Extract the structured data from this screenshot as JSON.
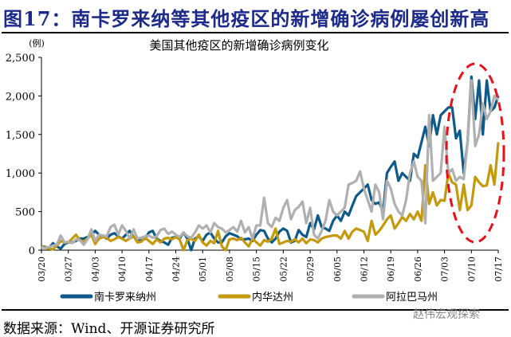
{
  "header": {
    "title": "图17：南卡罗来纳等其他疫区的新增确诊病例屡创新高"
  },
  "footer": {
    "source": "数据来源：Wind、开源证券研究所",
    "watermark": "赵伟宏观探索"
  },
  "chart_data": {
    "type": "line",
    "title": "美国其他疫区的新增确诊病例变化",
    "ylabel": "(例)",
    "ylim": [
      0,
      2500
    ],
    "yticks": [
      "0",
      "500",
      "1,000",
      "1,500",
      "2,000",
      "2,500"
    ],
    "start_date": "03/20",
    "xticks": [
      "03/20",
      "03/27",
      "04/03",
      "04/10",
      "04/17",
      "04/24",
      "05/01",
      "05/08",
      "05/15",
      "05/22",
      "05/29",
      "06/05",
      "06/12",
      "06/19",
      "06/26",
      "07/03",
      "07/10",
      "07/17"
    ],
    "legend_position": "bottom",
    "annotation": "red dashed ellipse around 07/03–07/17 values",
    "series": [
      {
        "name": "南卡罗来纳州",
        "color": "#0e5a8a",
        "values": [
          50,
          40,
          30,
          90,
          50,
          20,
          80,
          100,
          100,
          120,
          150,
          150,
          170,
          200,
          250,
          200,
          180,
          150,
          200,
          220,
          180,
          150,
          200,
          250,
          170,
          150,
          120,
          150,
          230,
          250,
          150,
          120,
          100,
          70,
          160,
          170,
          150,
          230,
          150,
          0,
          150,
          180,
          120,
          200,
          230,
          150,
          100,
          100,
          180,
          220,
          200,
          180,
          140,
          140,
          150,
          120,
          200,
          260,
          250,
          150,
          100,
          150,
          240,
          280,
          250,
          100,
          120,
          260,
          200,
          170,
          350,
          270,
          450,
          300,
          280,
          250,
          380,
          450,
          380,
          500,
          450,
          580,
          700,
          750,
          800,
          850,
          650,
          600,
          620,
          500,
          1000,
          1080,
          1150,
          900,
          1000,
          950,
          900,
          1250,
          1200,
          1400,
          1600,
          1350,
          1750,
          1500,
          1750,
          1800,
          1850,
          1850,
          1450,
          1550,
          1000,
          1400,
          2250,
          1700,
          2200,
          1500,
          2200,
          1800,
          1850,
          2000
        ]
      },
      {
        "name": "内华达州",
        "color": "#c49a0c",
        "values": [
          50,
          30,
          20,
          10,
          60,
          120,
          100,
          100,
          150,
          200,
          130,
          110,
          150,
          200,
          80,
          150,
          170,
          160,
          120,
          140,
          170,
          150,
          120,
          150,
          180,
          100,
          110,
          160,
          120,
          80,
          140,
          100,
          150,
          160,
          140,
          170,
          140,
          0,
          130,
          150,
          120,
          200,
          100,
          60,
          120,
          90,
          250,
          50,
          0,
          140,
          150,
          130,
          160,
          100,
          50,
          150,
          100,
          60,
          130,
          110,
          150,
          280,
          80,
          100,
          120,
          110,
          140,
          100,
          150,
          90,
          140,
          130,
          100,
          150,
          170,
          180,
          190,
          190,
          150,
          250,
          150,
          240,
          280,
          260,
          240,
          120,
          380,
          200,
          250,
          320,
          400,
          450,
          280,
          350,
          430,
          380,
          470,
          400,
          500,
          380,
          1100,
          600,
          750,
          580,
          650,
          640,
          1000,
          880,
          850,
          520,
          850,
          520,
          580,
          950,
          880,
          830,
          840,
          1100,
          850,
          1400
        ]
      },
      {
        "name": "阿拉巴马州",
        "color": "#b0b0b0",
        "values": [
          30,
          30,
          40,
          60,
          70,
          190,
          100,
          110,
          90,
          140,
          130,
          70,
          140,
          270,
          120,
          200,
          190,
          180,
          300,
          330,
          200,
          320,
          250,
          150,
          270,
          150,
          160,
          180,
          190,
          160,
          180,
          260,
          280,
          210,
          240,
          200,
          170,
          230,
          180,
          160,
          230,
          320,
          280,
          320,
          230,
          350,
          300,
          280,
          230,
          260,
          300,
          240,
          380,
          230,
          300,
          150,
          320,
          320,
          680,
          350,
          300,
          420,
          380,
          550,
          650,
          400,
          520,
          560,
          630,
          350,
          550,
          200,
          150,
          250,
          380,
          650,
          500,
          450,
          500,
          550,
          850,
          870,
          900,
          1020,
          800,
          650,
          500,
          850,
          750,
          400,
          900,
          800,
          600,
          500,
          450,
          650,
          1000,
          1150,
          950,
          900,
          350,
          1750,
          900,
          950,
          1000,
          1600,
          1000,
          1050,
          900,
          950,
          920,
          1400,
          2200,
          1350,
          1500,
          1900,
          1700,
          1800,
          2000,
          1950
        ]
      }
    ]
  }
}
